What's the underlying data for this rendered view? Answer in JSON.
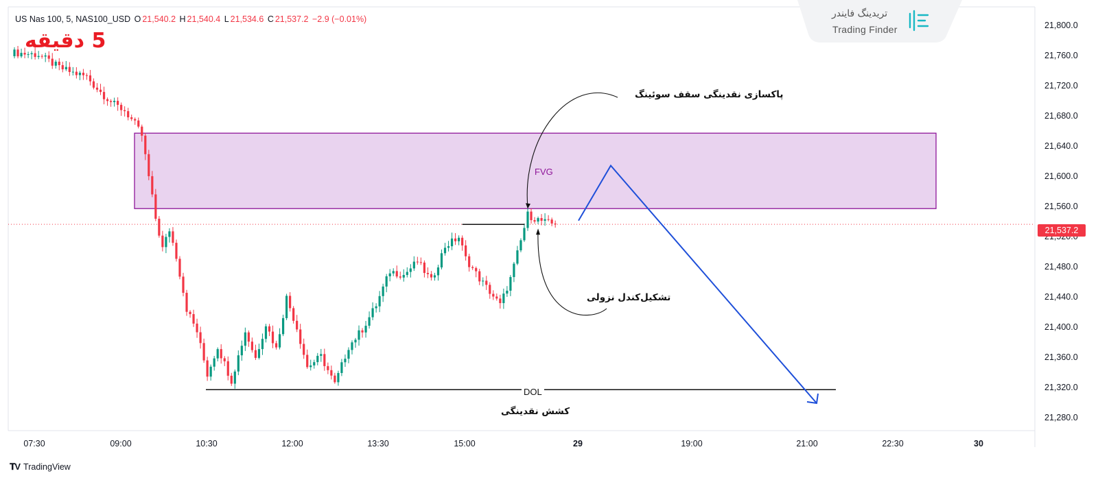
{
  "header": {
    "symbol": "US Nas 100, 5, NAS100_USD",
    "o_label": "O",
    "o_value": "21,540.2",
    "h_label": "H",
    "h_value": "21,540.4",
    "l_label": "L",
    "l_value": "21,534.6",
    "c_label": "C",
    "c_value": "21,537.2",
    "change": "−2.9 (−0.01%)"
  },
  "timeframe_label": "5 دقیقه",
  "logo": {
    "persian": "تریدینگ فایندر",
    "english": "Trading Finder"
  },
  "annotations": {
    "sweep": "پاکسازی نقدینگی سقف سوئینگ",
    "bearish_candle": "تشکیل‌کندل نزولی",
    "fvg": "FVG",
    "dol": "DOL",
    "liquidity_draw": "کشش نقدینگی"
  },
  "price_axis": {
    "ticks": [
      "21,800.0",
      "21,760.0",
      "21,720.0",
      "21,680.0",
      "21,640.0",
      "21,600.0",
      "21,560.0",
      "21,520.0",
      "21,480.0",
      "21,440.0",
      "21,400.0",
      "21,360.0",
      "21,320.0",
      "21,280.0"
    ],
    "current_price": "21,537.2"
  },
  "time_axis": {
    "ticks": [
      "07:30",
      "09:00",
      "10:30",
      "12:00",
      "13:30",
      "15:00",
      "29",
      "19:00",
      "21:00",
      "22:30",
      "30"
    ]
  },
  "brand": "TradingView",
  "colors": {
    "up": "#089981",
    "down": "#f23645",
    "fvg_fill": "#e9d3ef",
    "fvg_border": "#8e1599",
    "projection": "#1e4fd9"
  },
  "chart_data": {
    "type": "candlestick",
    "symbol": "US Nas 100",
    "interval": "5",
    "ylim": [
      21270,
      21820
    ],
    "fvg_zone": [
      21558,
      21658
    ],
    "dol_level": 21318,
    "swing_high": 21537,
    "current_price": 21537.2,
    "close_path": [
      [
        0,
        21765
      ],
      [
        8,
        21762
      ],
      [
        14,
        21745
      ],
      [
        18,
        21738
      ],
      [
        22,
        21733
      ],
      [
        24,
        21722
      ],
      [
        27,
        21708
      ],
      [
        30,
        21696
      ],
      [
        33,
        21688
      ],
      [
        36,
        21670
      ],
      [
        38,
        21655
      ],
      [
        40,
        21600
      ],
      [
        42,
        21545
      ],
      [
        44,
        21505
      ],
      [
        46,
        21530
      ],
      [
        48,
        21495
      ],
      [
        51,
        21425
      ],
      [
        54,
        21395
      ],
      [
        57,
        21338
      ],
      [
        60,
        21375
      ],
      [
        64,
        21330
      ],
      [
        68,
        21395
      ],
      [
        71,
        21360
      ],
      [
        74,
        21405
      ],
      [
        77,
        21372
      ],
      [
        80,
        21440
      ],
      [
        83,
        21400
      ],
      [
        86,
        21348
      ],
      [
        90,
        21362
      ],
      [
        94,
        21325
      ],
      [
        98,
        21375
      ],
      [
        102,
        21398
      ],
      [
        106,
        21430
      ],
      [
        110,
        21475
      ],
      [
        114,
        21470
      ],
      [
        118,
        21488
      ],
      [
        122,
        21462
      ],
      [
        126,
        21508
      ],
      [
        130,
        21520
      ],
      [
        132,
        21492
      ],
      [
        136,
        21465
      ],
      [
        139,
        21448
      ],
      [
        142,
        21430
      ],
      [
        145,
        21465
      ],
      [
        148,
        21515
      ],
      [
        150,
        21550
      ],
      [
        152,
        21545
      ],
      [
        155,
        21540
      ],
      [
        158,
        21537
      ]
    ]
  }
}
